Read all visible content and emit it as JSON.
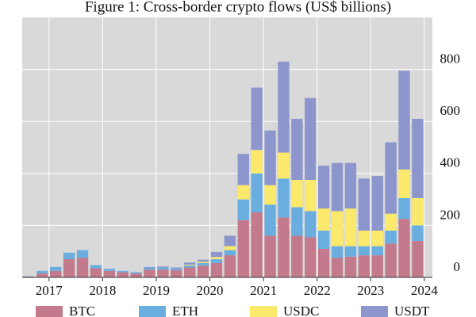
{
  "chart_data": {
    "type": "stacked_bar",
    "title": "Figure 1: Cross-border crypto flows (US$ billions)",
    "x": [
      2016.625,
      2016.875,
      2017.125,
      2017.375,
      2017.625,
      2017.875,
      2018.125,
      2018.375,
      2018.625,
      2018.875,
      2019.125,
      2019.375,
      2019.625,
      2019.875,
      2020.125,
      2020.375,
      2020.625,
      2020.875,
      2021.125,
      2021.375,
      2021.625,
      2021.875,
      2022.125,
      2022.375,
      2022.625,
      2022.875,
      2023.125,
      2023.375,
      2023.625,
      2023.875
    ],
    "series": [
      {
        "name": "BTC",
        "color": "#c27a8c",
        "values": [
          3,
          15,
          25,
          70,
          75,
          35,
          25,
          20,
          15,
          30,
          30,
          28,
          38,
          45,
          55,
          85,
          220,
          250,
          160,
          230,
          160,
          155,
          110,
          75,
          80,
          85,
          85,
          130,
          225,
          140
        ]
      },
      {
        "name": "ETH",
        "color": "#6aaee0",
        "values": [
          1,
          10,
          15,
          25,
          30,
          12,
          8,
          5,
          5,
          8,
          8,
          6,
          8,
          10,
          15,
          20,
          80,
          150,
          120,
          150,
          110,
          100,
          70,
          45,
          40,
          35,
          35,
          50,
          80,
          60
        ]
      },
      {
        "name": "USDC",
        "color": "#fbe96c",
        "values": [
          0,
          0,
          0,
          0,
          0,
          0,
          0,
          0,
          0,
          0,
          0,
          0,
          3,
          5,
          8,
          15,
          55,
          90,
          75,
          100,
          105,
          120,
          85,
          135,
          145,
          60,
          60,
          65,
          110,
          105
        ]
      },
      {
        "name": "USDT",
        "color": "#8d96cc",
        "values": [
          0,
          0,
          0,
          0,
          0,
          0,
          0,
          0,
          0,
          2,
          4,
          4,
          8,
          8,
          20,
          40,
          120,
          240,
          210,
          350,
          235,
          315,
          165,
          185,
          175,
          200,
          210,
          275,
          380,
          305
        ]
      }
    ],
    "xlim": [
      2016.5,
      2024.15
    ],
    "xticks": [
      2017,
      2018,
      2019,
      2020,
      2021,
      2022,
      2023,
      2024
    ],
    "ylim": [
      0,
      1000
    ],
    "yticks": [
      0,
      200,
      400,
      600,
      800
    ],
    "grid": true,
    "legend": "bottom"
  }
}
